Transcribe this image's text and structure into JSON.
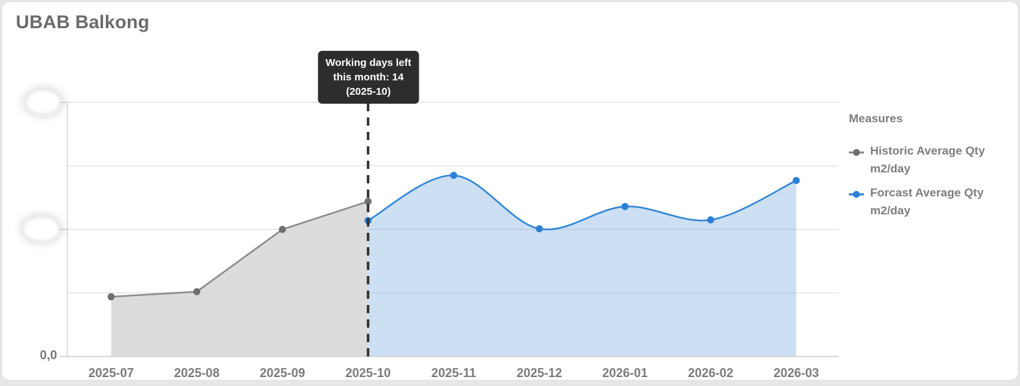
{
  "card": {
    "title": "UBAB Balkong"
  },
  "annotation": {
    "line1": "Working days left",
    "line2": "this month: 14",
    "line3": "(2025-10)"
  },
  "legend": {
    "title": "Measures",
    "items": [
      {
        "label": "Historic Average Qty m2/day",
        "color": "#8a8a8a",
        "dot": "#6f6f6f"
      },
      {
        "label": "Forcast Average Qty m2/day",
        "color": "#2f85d8",
        "dot": "#2b80d6"
      }
    ]
  },
  "y_axis": {
    "zero_label": "0,0",
    "redacted_tick_labels": 2
  },
  "chart_data": {
    "type": "area",
    "title": "UBAB Balkong",
    "x": [
      "2025-07",
      "2025-08",
      "2025-09",
      "2025-10",
      "2025-11",
      "2025-12",
      "2026-01",
      "2026-02",
      "2026-03"
    ],
    "series": [
      {
        "name": "Historic Average Qty m2/day",
        "line_style": "linear",
        "color": "#8a8a8a",
        "dot_color": "#6f6f6f",
        "fill": "#dcdcdc",
        "start_index": 0,
        "values": [
          9.4,
          10.2,
          20.0,
          24.4
        ]
      },
      {
        "name": "Forcast Average Qty m2/day",
        "line_style": "smooth",
        "color": "#2f85d8",
        "dot_color": "#2b80d6",
        "fill": "rgba(120,170,224,0.38)",
        "start_index": 3,
        "values": [
          21.4,
          28.5,
          20.1,
          23.6,
          21.5,
          27.7
        ]
      }
    ],
    "ylim": [
      0,
      40
    ],
    "y_tick_step": 10,
    "y_labeled_ticks": [
      0,
      20,
      40
    ],
    "y_tick_labels_note": "upper y tick labels are blurred/redacted in screenshot; only 0,0 readable; values estimated from gridlines",
    "grid": true,
    "legend_position": "right",
    "marker_line": {
      "x": "2025-10",
      "style": "dashed",
      "color": "#2e2e2e"
    }
  }
}
